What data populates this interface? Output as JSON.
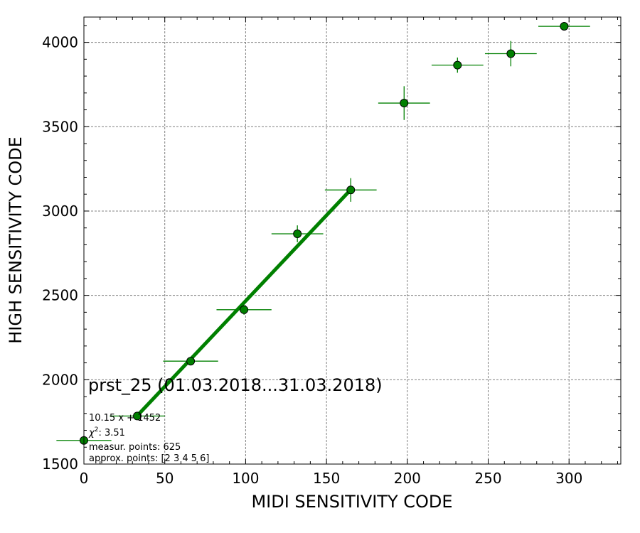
{
  "chart_data": {
    "type": "scatter",
    "title": "",
    "xlabel": "MIDI SENSITIVITY CODE",
    "ylabel": "HIGH SENSITIVITY CODE",
    "xlim": [
      0,
      332
    ],
    "ylim": [
      1500,
      4150
    ],
    "xticks": [
      0,
      50,
      100,
      150,
      200,
      250,
      300
    ],
    "yticks": [
      1500,
      2000,
      2500,
      3000,
      3500,
      4000
    ],
    "grid": true,
    "color": "#008000",
    "points": [
      {
        "x": 0,
        "y": 1640,
        "xerr": 17,
        "yerr": 10
      },
      {
        "x": 33,
        "y": 1785,
        "xerr": 17,
        "yerr": 12
      },
      {
        "x": 66,
        "y": 2110,
        "xerr": 17,
        "yerr": 18
      },
      {
        "x": 99,
        "y": 2415,
        "xerr": 17,
        "yerr": 30
      },
      {
        "x": 132,
        "y": 2865,
        "xerr": 16,
        "yerr": 50
      },
      {
        "x": 165,
        "y": 3125,
        "xerr": 16,
        "yerr": 70
      },
      {
        "x": 198,
        "y": 3640,
        "xerr": 16,
        "yerr": 100
      },
      {
        "x": 231,
        "y": 3865,
        "xerr": 16,
        "yerr": 45
      },
      {
        "x": 264,
        "y": 3933,
        "xerr": 16,
        "yerr": 75
      },
      {
        "x": 297,
        "y": 4095,
        "xerr": 16,
        "yerr": 12
      }
    ],
    "fit": {
      "slope": 10.15,
      "intercept": 1452,
      "x_range": [
        33,
        165
      ]
    },
    "annotations": {
      "title": "prst_25 (01.03.2018...31.03.2018)",
      "equation": "10.15 x + 1452",
      "chi2_label": "χ",
      "chi2_sup": "2",
      "chi2_value": ": 3.51",
      "measur_points": "measur. points: 625",
      "approx_points": "approx. points: [2 3 4 5 6]"
    }
  }
}
